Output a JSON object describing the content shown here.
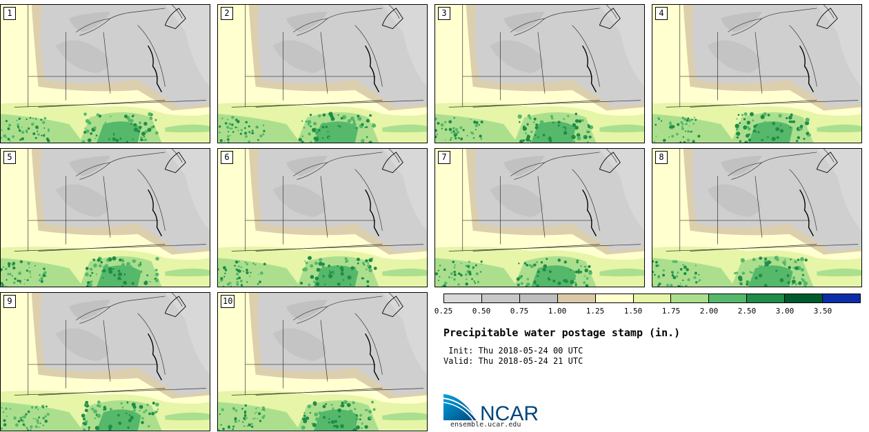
{
  "stamps": [
    {
      "label": "1"
    },
    {
      "label": "2"
    },
    {
      "label": "3"
    },
    {
      "label": "4"
    },
    {
      "label": "5"
    },
    {
      "label": "6"
    },
    {
      "label": "7"
    },
    {
      "label": "8"
    },
    {
      "label": "9"
    },
    {
      "label": "10"
    }
  ],
  "colorbar": {
    "colors": [
      "#d9d9d9",
      "#c8c8c8",
      "#bebebe",
      "#d9c9a9",
      "#ffffd0",
      "#e6f5a8",
      "#abdf8d",
      "#55b86a",
      "#1f8c47",
      "#005a2b",
      "#0b2ea8"
    ],
    "labels": [
      "0.25",
      "0.50",
      "0.75",
      "1.00",
      "1.25",
      "1.50",
      "1.75",
      "2.00",
      "2.50",
      "3.00",
      "3.50"
    ]
  },
  "title": "Precipitable water postage stamp (in.)",
  "init": " Init: Thu 2018-05-24 00 UTC",
  "valid": "Valid: Thu 2018-05-24 21 UTC",
  "logo": {
    "text": "NCAR",
    "url": "ensemble.ucar.edu"
  },
  "colors": {
    "gray": "#cfcfcf",
    "dark_gray": "#bdbdbd",
    "tan": "#dccfae",
    "pale_yellow": "#ffffd0",
    "light_green": "#e6f5a8",
    "mid_green": "#abdf8d",
    "green": "#55b86a",
    "dark_green": "#1f8c47",
    "ncar_blue": "#0069b4"
  }
}
